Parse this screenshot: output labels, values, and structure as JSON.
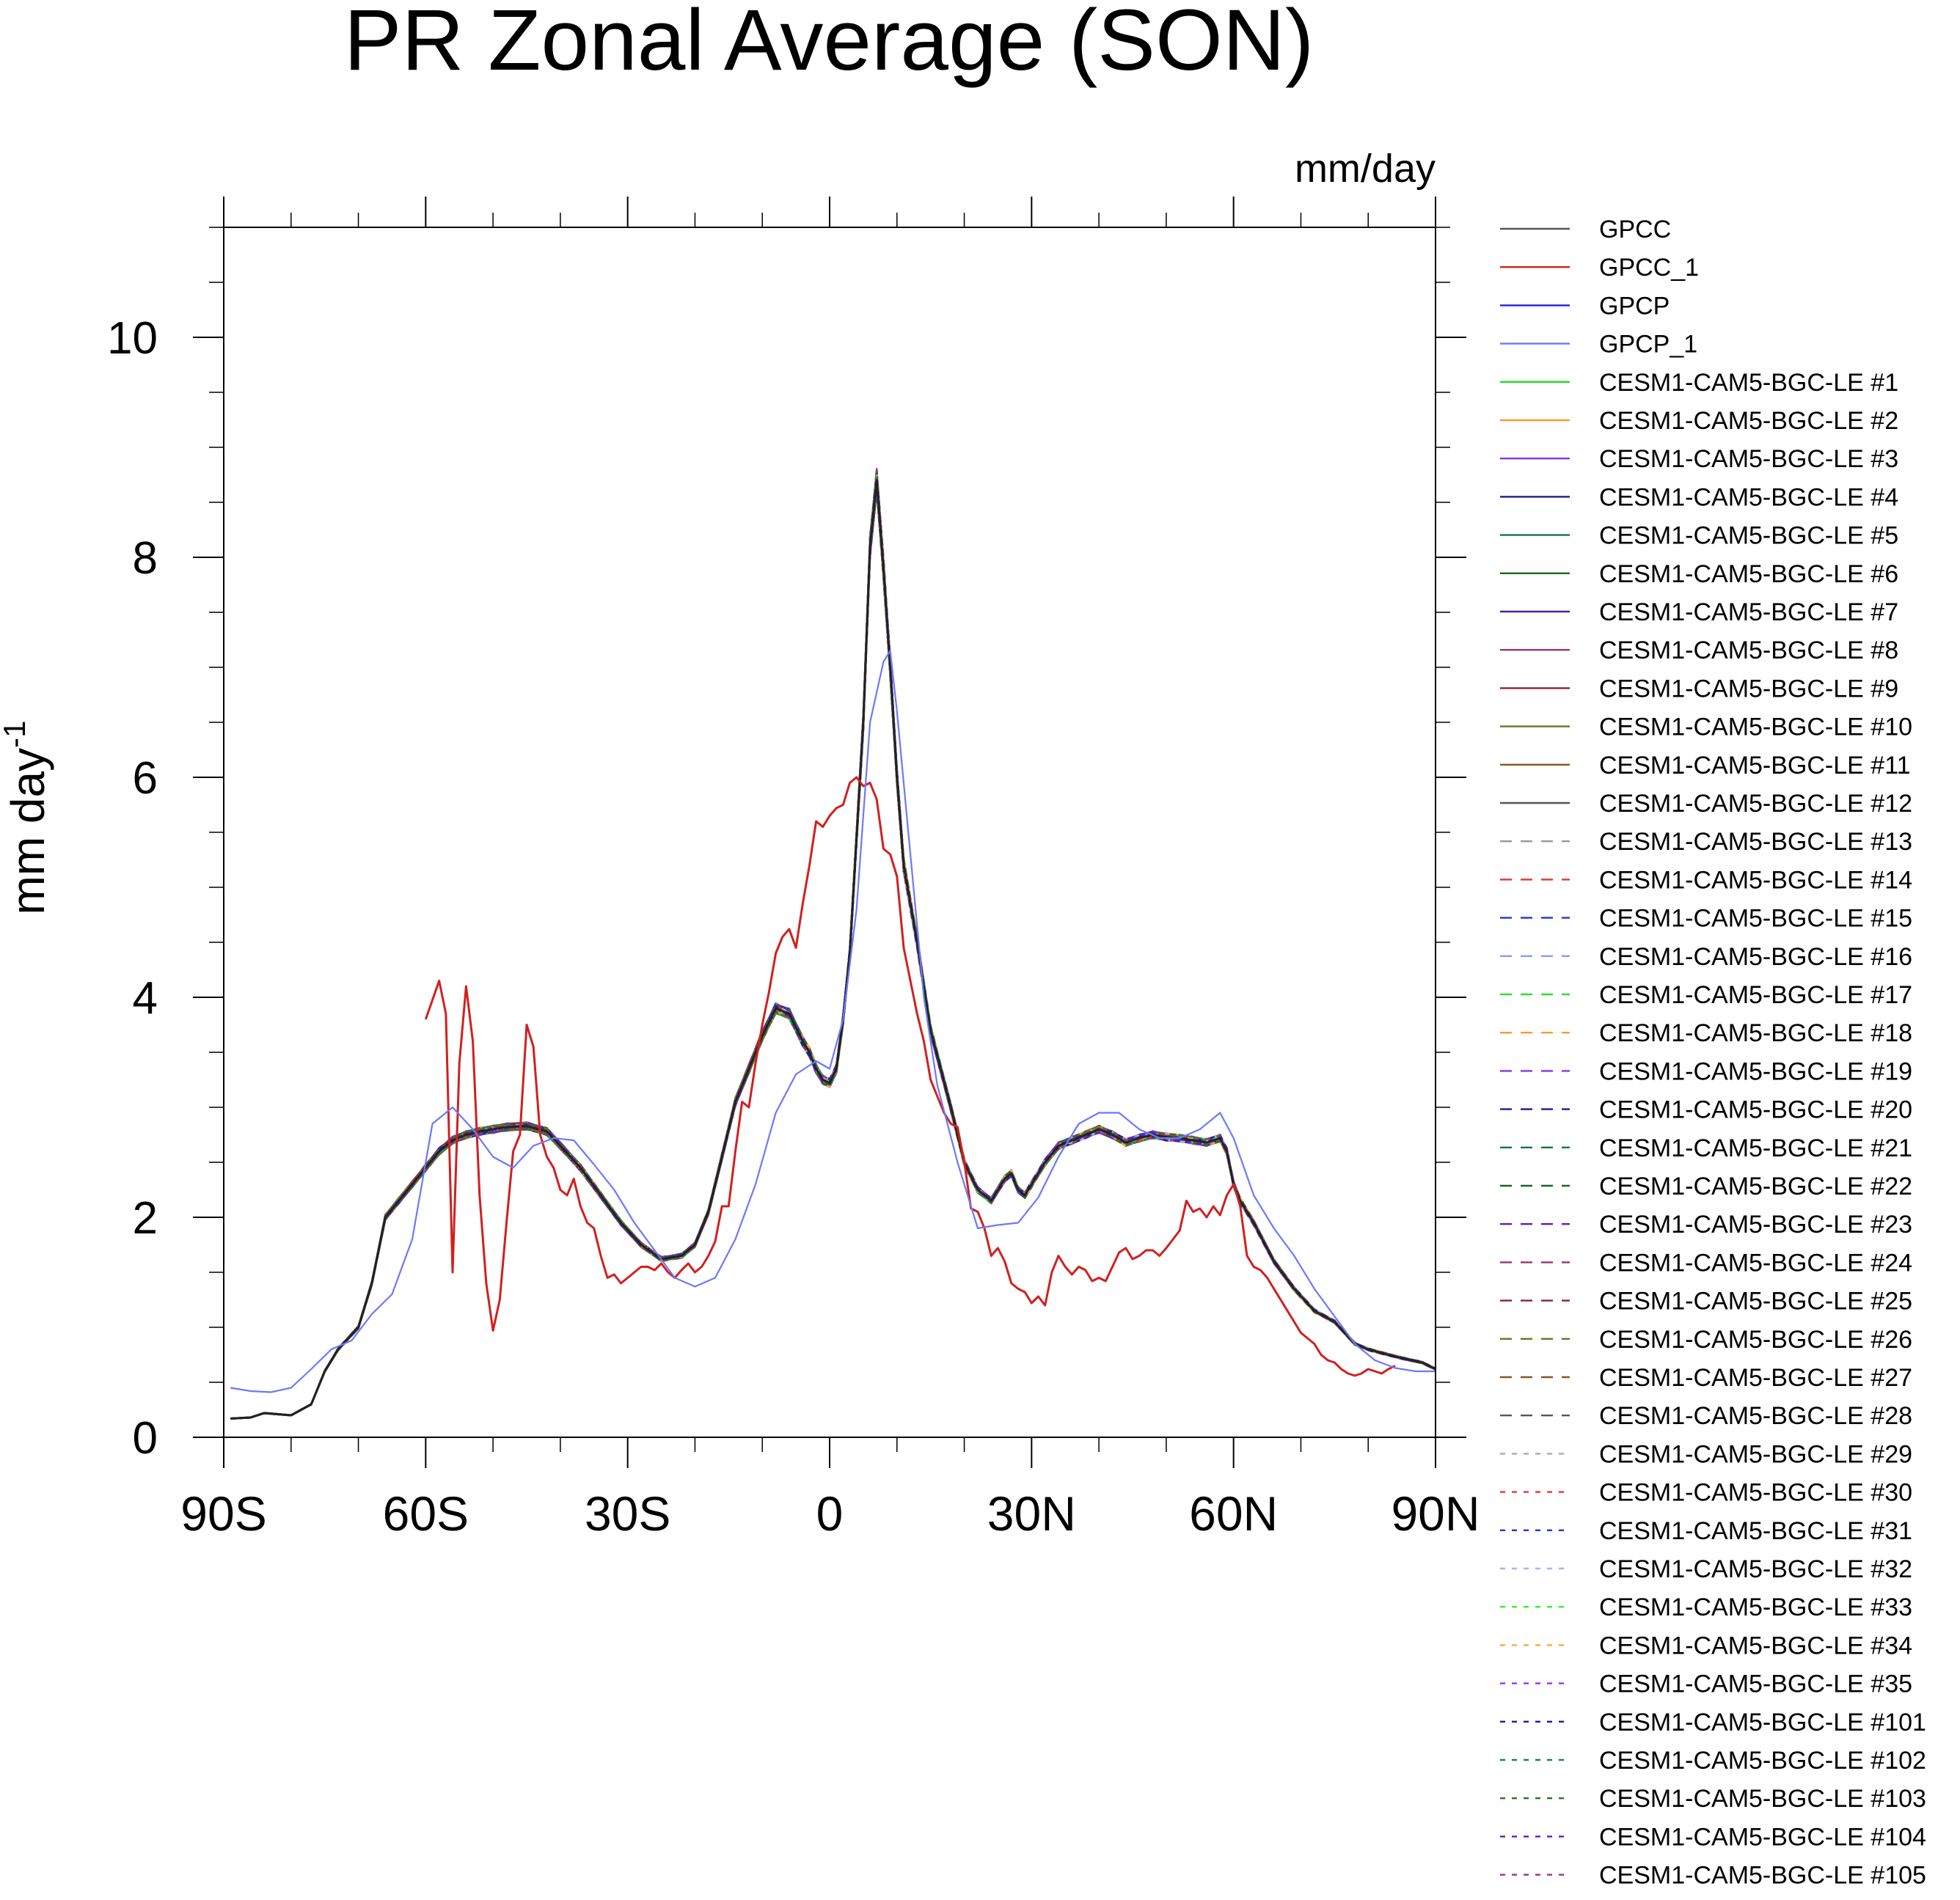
{
  "chart_data": {
    "type": "line",
    "title": "PR Zonal Average (SON)",
    "units_label": "mm/day",
    "ylabel": "mm day",
    "ylabel_superscript": "-1",
    "xlabel": "",
    "xlim": [
      -90,
      90
    ],
    "ylim": [
      0,
      11
    ],
    "grid": false,
    "legend_position": "right",
    "x_ticks": [
      {
        "value": -90,
        "label": "90S"
      },
      {
        "value": -60,
        "label": "60S"
      },
      {
        "value": -30,
        "label": "30S"
      },
      {
        "value": 0,
        "label": "0"
      },
      {
        "value": 30,
        "label": "30N"
      },
      {
        "value": 60,
        "label": "60N"
      },
      {
        "value": 90,
        "label": "90N"
      }
    ],
    "y_ticks": [
      {
        "value": 0,
        "label": "0"
      },
      {
        "value": 2,
        "label": "2"
      },
      {
        "value": 4,
        "label": "4"
      },
      {
        "value": 6,
        "label": "6"
      },
      {
        "value": 8,
        "label": "8"
      },
      {
        "value": 10,
        "label": "10"
      }
    ],
    "base_model_series": {
      "x": [
        -89,
        -86,
        -84,
        -80,
        -77,
        -75,
        -73,
        -70,
        -68,
        -66,
        -64,
        -62,
        -60,
        -58,
        -56,
        -54,
        -52,
        -50,
        -48,
        -45,
        -42,
        -40,
        -37,
        -34,
        -31,
        -28,
        -25,
        -22,
        -20,
        -18,
        -16,
        -14,
        -12,
        -10,
        -8,
        -6,
        -4,
        -3,
        -2,
        -1,
        0,
        1,
        2,
        3,
        5,
        6,
        7,
        8,
        9,
        10,
        11,
        13,
        15,
        18,
        20,
        22,
        24,
        26,
        27,
        28,
        29,
        30,
        32,
        34,
        36,
        38,
        40,
        42,
        44,
        46,
        48,
        50,
        52,
        54,
        56,
        58,
        59,
        60,
        61,
        63,
        66,
        69,
        72,
        75,
        78,
        80,
        83,
        85,
        88,
        90
      ],
      "y": [
        0.17,
        0.18,
        0.22,
        0.2,
        0.3,
        0.6,
        0.8,
        1.0,
        1.4,
        2.0,
        2.15,
        2.3,
        2.45,
        2.6,
        2.7,
        2.75,
        2.78,
        2.8,
        2.82,
        2.83,
        2.78,
        2.65,
        2.45,
        2.2,
        1.95,
        1.75,
        1.62,
        1.65,
        1.75,
        2.05,
        2.55,
        3.05,
        3.35,
        3.65,
        3.9,
        3.85,
        3.6,
        3.5,
        3.35,
        3.25,
        3.22,
        3.35,
        3.8,
        4.4,
        6.5,
        8.1,
        8.7,
        7.9,
        7.0,
        6.0,
        5.2,
        4.5,
        3.7,
        3.0,
        2.5,
        2.25,
        2.15,
        2.35,
        2.4,
        2.25,
        2.2,
        2.3,
        2.5,
        2.65,
        2.7,
        2.75,
        2.8,
        2.75,
        2.68,
        2.72,
        2.75,
        2.73,
        2.72,
        2.7,
        2.68,
        2.72,
        2.6,
        2.3,
        2.15,
        1.95,
        1.6,
        1.35,
        1.15,
        1.05,
        0.85,
        0.8,
        0.75,
        0.72,
        0.68,
        0.62
      ]
    },
    "reference_series": {
      "GPCC_1": {
        "x": [
          -60,
          -58,
          -57,
          -56,
          -55,
          -54,
          -53,
          -52,
          -51,
          -50,
          -49,
          -48,
          -47,
          -46,
          -45,
          -44,
          -43,
          -42,
          -41,
          -40,
          -39,
          -38,
          -37,
          -36,
          -35,
          -34,
          -33,
          -32,
          -31,
          -30,
          -29,
          -28,
          -27,
          -26,
          -25,
          -24,
          -23,
          -22,
          -21,
          -20,
          -19,
          -18,
          -17,
          -16,
          -15,
          -14,
          -13,
          -12,
          -11,
          -10,
          -9,
          -8,
          -7,
          -6,
          -5,
          -4,
          -3,
          -2,
          -1,
          0,
          1,
          2,
          3,
          4,
          5,
          6,
          7,
          8,
          9,
          10,
          11,
          12,
          13,
          14,
          15,
          16,
          17,
          18,
          19,
          20,
          21,
          22,
          23,
          24,
          25,
          26,
          27,
          28,
          29,
          30,
          31,
          32,
          33,
          34,
          35,
          36,
          37,
          38,
          39,
          40,
          41,
          42,
          43,
          44,
          45,
          46,
          47,
          48,
          49,
          50,
          51,
          52,
          53,
          54,
          55,
          56,
          57,
          58,
          59,
          60,
          61,
          62,
          63,
          64,
          65,
          66,
          67,
          68,
          69,
          70,
          71,
          72,
          73,
          74,
          75,
          76,
          77,
          78,
          79,
          80,
          81,
          82,
          83,
          84
        ],
        "y": [
          3.8,
          4.15,
          3.85,
          1.5,
          3.4,
          4.1,
          3.6,
          2.2,
          1.4,
          0.97,
          1.25,
          1.95,
          2.6,
          2.75,
          3.75,
          3.55,
          2.75,
          2.55,
          2.45,
          2.25,
          2.2,
          2.35,
          2.1,
          1.95,
          1.9,
          1.65,
          1.45,
          1.48,
          1.4,
          1.45,
          1.5,
          1.55,
          1.55,
          1.52,
          1.58,
          1.5,
          1.45,
          1.52,
          1.58,
          1.5,
          1.55,
          1.65,
          1.78,
          2.1,
          2.1,
          2.6,
          3.05,
          3.0,
          3.4,
          3.75,
          4.05,
          4.4,
          4.55,
          4.62,
          4.45,
          4.85,
          5.2,
          5.6,
          5.55,
          5.65,
          5.72,
          5.75,
          5.95,
          6.0,
          5.92,
          5.95,
          5.8,
          5.35,
          5.3,
          5.1,
          4.45,
          4.15,
          3.85,
          3.6,
          3.25,
          3.1,
          2.95,
          2.85,
          2.82,
          2.5,
          2.08,
          2.05,
          1.9,
          1.65,
          1.72,
          1.6,
          1.4,
          1.35,
          1.32,
          1.22,
          1.28,
          1.2,
          1.5,
          1.65,
          1.55,
          1.48,
          1.55,
          1.52,
          1.42,
          1.45,
          1.42,
          1.55,
          1.68,
          1.72,
          1.62,
          1.65,
          1.7,
          1.7,
          1.65,
          1.72,
          1.8,
          1.88,
          2.15,
          2.05,
          2.08,
          2.0,
          2.1,
          2.02,
          2.2,
          2.3,
          2.1,
          1.65,
          1.55,
          1.52,
          1.45,
          1.35,
          1.25,
          1.15,
          1.05,
          0.95,
          0.9,
          0.85,
          0.75,
          0.7,
          0.68,
          0.62,
          0.58,
          0.56,
          0.58,
          0.62,
          0.6,
          0.58,
          0.62,
          0.65
        ]
      },
      "GPCP_1": {
        "x": [
          -89,
          -86,
          -83,
          -80,
          -77,
          -74,
          -71,
          -68,
          -65,
          -62,
          -59,
          -56,
          -53,
          -50,
          -47,
          -44,
          -41,
          -38,
          -35,
          -32,
          -29,
          -26,
          -23,
          -20,
          -17,
          -14,
          -11,
          -8,
          -5,
          -2,
          0,
          2,
          4,
          6,
          8,
          9,
          10,
          12,
          14,
          16,
          19,
          22,
          25,
          28,
          31,
          34,
          37,
          40,
          43,
          46,
          49,
          52,
          55,
          58,
          60,
          63,
          66,
          69,
          72,
          75,
          78,
          81,
          84,
          87,
          90
        ],
        "y": [
          0.45,
          0.42,
          0.41,
          0.45,
          0.62,
          0.8,
          0.88,
          1.12,
          1.3,
          1.8,
          2.85,
          3.0,
          2.8,
          2.55,
          2.45,
          2.65,
          2.72,
          2.7,
          2.48,
          2.25,
          1.95,
          1.7,
          1.45,
          1.37,
          1.45,
          1.8,
          2.3,
          2.95,
          3.3,
          3.42,
          3.35,
          3.8,
          4.8,
          6.5,
          7.05,
          7.15,
          6.6,
          5.3,
          4.0,
          3.2,
          2.5,
          1.9,
          1.93,
          1.95,
          2.18,
          2.55,
          2.85,
          2.95,
          2.95,
          2.8,
          2.72,
          2.72,
          2.8,
          2.95,
          2.72,
          2.2,
          1.9,
          1.65,
          1.35,
          1.1,
          0.85,
          0.7,
          0.63,
          0.6,
          0.6
        ]
      }
    },
    "series": [
      {
        "name": "GPCC",
        "color": "#555555",
        "dash": "solid",
        "kind": "model"
      },
      {
        "name": "GPCC_1",
        "color": "#d02020",
        "dash": "solid",
        "kind": "reference"
      },
      {
        "name": "GPCP",
        "color": "#2020e0",
        "dash": "solid",
        "kind": "model"
      },
      {
        "name": "GPCP_1",
        "color": "#6c78ff",
        "dash": "solid",
        "kind": "reference"
      },
      {
        "name": "CESM1-CAM5-BGC-LE #1",
        "color": "#22dd22",
        "dash": "solid",
        "kind": "model"
      },
      {
        "name": "CESM1-CAM5-BGC-LE #2",
        "color": "#ff9a30",
        "dash": "solid",
        "kind": "model"
      },
      {
        "name": "CESM1-CAM5-BGC-LE #3",
        "color": "#8833ee",
        "dash": "solid",
        "kind": "model"
      },
      {
        "name": "CESM1-CAM5-BGC-LE #4",
        "color": "#1a1a99",
        "dash": "solid",
        "kind": "model"
      },
      {
        "name": "CESM1-CAM5-BGC-LE #5",
        "color": "#117744",
        "dash": "solid",
        "kind": "model"
      },
      {
        "name": "CESM1-CAM5-BGC-LE #6",
        "color": "#1a6622",
        "dash": "solid",
        "kind": "model"
      },
      {
        "name": "CESM1-CAM5-BGC-LE #7",
        "color": "#4422aa",
        "dash": "solid",
        "kind": "model"
      },
      {
        "name": "CESM1-CAM5-BGC-LE #8",
        "color": "#993377",
        "dash": "solid",
        "kind": "model"
      },
      {
        "name": "CESM1-CAM5-BGC-LE #9",
        "color": "#882233",
        "dash": "solid",
        "kind": "model"
      },
      {
        "name": "CESM1-CAM5-BGC-LE #10",
        "color": "#667722",
        "dash": "solid",
        "kind": "model"
      },
      {
        "name": "CESM1-CAM5-BGC-LE #11",
        "color": "#885522",
        "dash": "solid",
        "kind": "model"
      },
      {
        "name": "CESM1-CAM5-BGC-LE #12",
        "color": "#555555",
        "dash": "solid",
        "kind": "model"
      },
      {
        "name": "CESM1-CAM5-BGC-LE #13",
        "color": "#999999",
        "dash": "long",
        "kind": "model"
      },
      {
        "name": "CESM1-CAM5-BGC-LE #14",
        "color": "#e03333",
        "dash": "long",
        "kind": "model"
      },
      {
        "name": "CESM1-CAM5-BGC-LE #15",
        "color": "#2233dd",
        "dash": "long",
        "kind": "model"
      },
      {
        "name": "CESM1-CAM5-BGC-LE #16",
        "color": "#8899ff",
        "dash": "long",
        "kind": "model"
      },
      {
        "name": "CESM1-CAM5-BGC-LE #17",
        "color": "#33dd33",
        "dash": "long",
        "kind": "model"
      },
      {
        "name": "CESM1-CAM5-BGC-LE #18",
        "color": "#ff9933",
        "dash": "long",
        "kind": "model"
      },
      {
        "name": "CESM1-CAM5-BGC-LE #19",
        "color": "#8833ee",
        "dash": "long",
        "kind": "model"
      },
      {
        "name": "CESM1-CAM5-BGC-LE #20",
        "color": "#1a1a99",
        "dash": "long",
        "kind": "model"
      },
      {
        "name": "CESM1-CAM5-BGC-LE #21",
        "color": "#117744",
        "dash": "long",
        "kind": "model"
      },
      {
        "name": "CESM1-CAM5-BGC-LE #22",
        "color": "#1a6622",
        "dash": "long",
        "kind": "model"
      },
      {
        "name": "CESM1-CAM5-BGC-LE #23",
        "color": "#5522bb",
        "dash": "long",
        "kind": "model"
      },
      {
        "name": "CESM1-CAM5-BGC-LE #24",
        "color": "#993377",
        "dash": "long",
        "kind": "model"
      },
      {
        "name": "CESM1-CAM5-BGC-LE #25",
        "color": "#882233",
        "dash": "long",
        "kind": "model"
      },
      {
        "name": "CESM1-CAM5-BGC-LE #26",
        "color": "#667722",
        "dash": "long",
        "kind": "model"
      },
      {
        "name": "CESM1-CAM5-BGC-LE #27",
        "color": "#885522",
        "dash": "long",
        "kind": "model"
      },
      {
        "name": "CESM1-CAM5-BGC-LE #28",
        "color": "#555555",
        "dash": "long",
        "kind": "model"
      },
      {
        "name": "CESM1-CAM5-BGC-LE #29",
        "color": "#aaaaaa",
        "dash": "short",
        "kind": "model"
      },
      {
        "name": "CESM1-CAM5-BGC-LE #30",
        "color": "#ee3333",
        "dash": "short",
        "kind": "model"
      },
      {
        "name": "CESM1-CAM5-BGC-LE #31",
        "color": "#2233cc",
        "dash": "short",
        "kind": "model"
      },
      {
        "name": "CESM1-CAM5-BGC-LE #32",
        "color": "#aab0ff",
        "dash": "short",
        "kind": "model"
      },
      {
        "name": "CESM1-CAM5-BGC-LE #33",
        "color": "#33ee33",
        "dash": "short",
        "kind": "model"
      },
      {
        "name": "CESM1-CAM5-BGC-LE #34",
        "color": "#ffaa33",
        "dash": "short",
        "kind": "model"
      },
      {
        "name": "CESM1-CAM5-BGC-LE #35",
        "color": "#9933ee",
        "dash": "short",
        "kind": "model"
      },
      {
        "name": "CESM1-CAM5-BGC-LE #101",
        "color": "#1a1aaa",
        "dash": "short",
        "kind": "model"
      },
      {
        "name": "CESM1-CAM5-BGC-LE #102",
        "color": "#118855",
        "dash": "short",
        "kind": "model"
      },
      {
        "name": "CESM1-CAM5-BGC-LE #103",
        "color": "#227722",
        "dash": "short",
        "kind": "model"
      },
      {
        "name": "CESM1-CAM5-BGC-LE #104",
        "color": "#5522bb",
        "dash": "short",
        "kind": "model"
      },
      {
        "name": "CESM1-CAM5-BGC-LE #105",
        "color": "#993377",
        "dash": "short",
        "kind": "model"
      }
    ]
  }
}
